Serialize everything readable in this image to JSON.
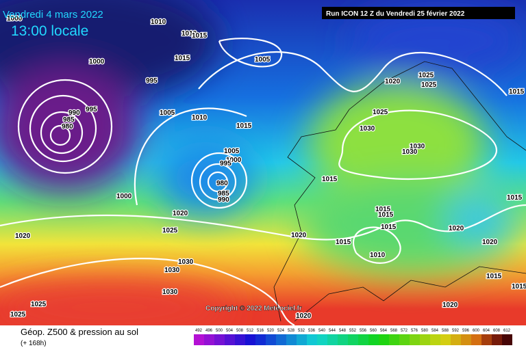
{
  "header": {
    "date": "Vendredi 4 mars 2022",
    "time": "13:00 locale",
    "run": "Run ICON 12 Z du Vendredi 25 février 2022"
  },
  "copyright": "Copyright © 2022 Meteociel.fr",
  "footer": {
    "title": "Géop. Z500 & pression au sol",
    "lead": "(+ 168h)"
  },
  "scale": [
    "492",
    "496",
    "500",
    "504",
    "508",
    "512",
    "516",
    "520",
    "524",
    "528",
    "532",
    "536",
    "540",
    "544",
    "548",
    "552",
    "556",
    "560",
    "564",
    "568",
    "572",
    "576",
    "580",
    "584",
    "588",
    "592",
    "596",
    "600",
    "604",
    "608",
    "612"
  ],
  "isobar_labels": [
    "1000",
    "1010",
    "1010",
    "1015",
    "1015",
    "1005",
    "1000",
    "995",
    "995",
    "990",
    "985",
    "980",
    "1005",
    "1010",
    "1015",
    "1005",
    "1000",
    "995",
    "980",
    "985",
    "990",
    "1000",
    "1020",
    "1025",
    "1020",
    "1020",
    "1030",
    "1030",
    "1030",
    "1025",
    "1025",
    "1020",
    "1015",
    "1015",
    "1015",
    "1015",
    "1015",
    "1010",
    "1020",
    "1025",
    "1025",
    "1015",
    "1025",
    "1030",
    "1030",
    "1030",
    "1020",
    "1020",
    "1015",
    "1015",
    "1015",
    "1020"
  ]
}
